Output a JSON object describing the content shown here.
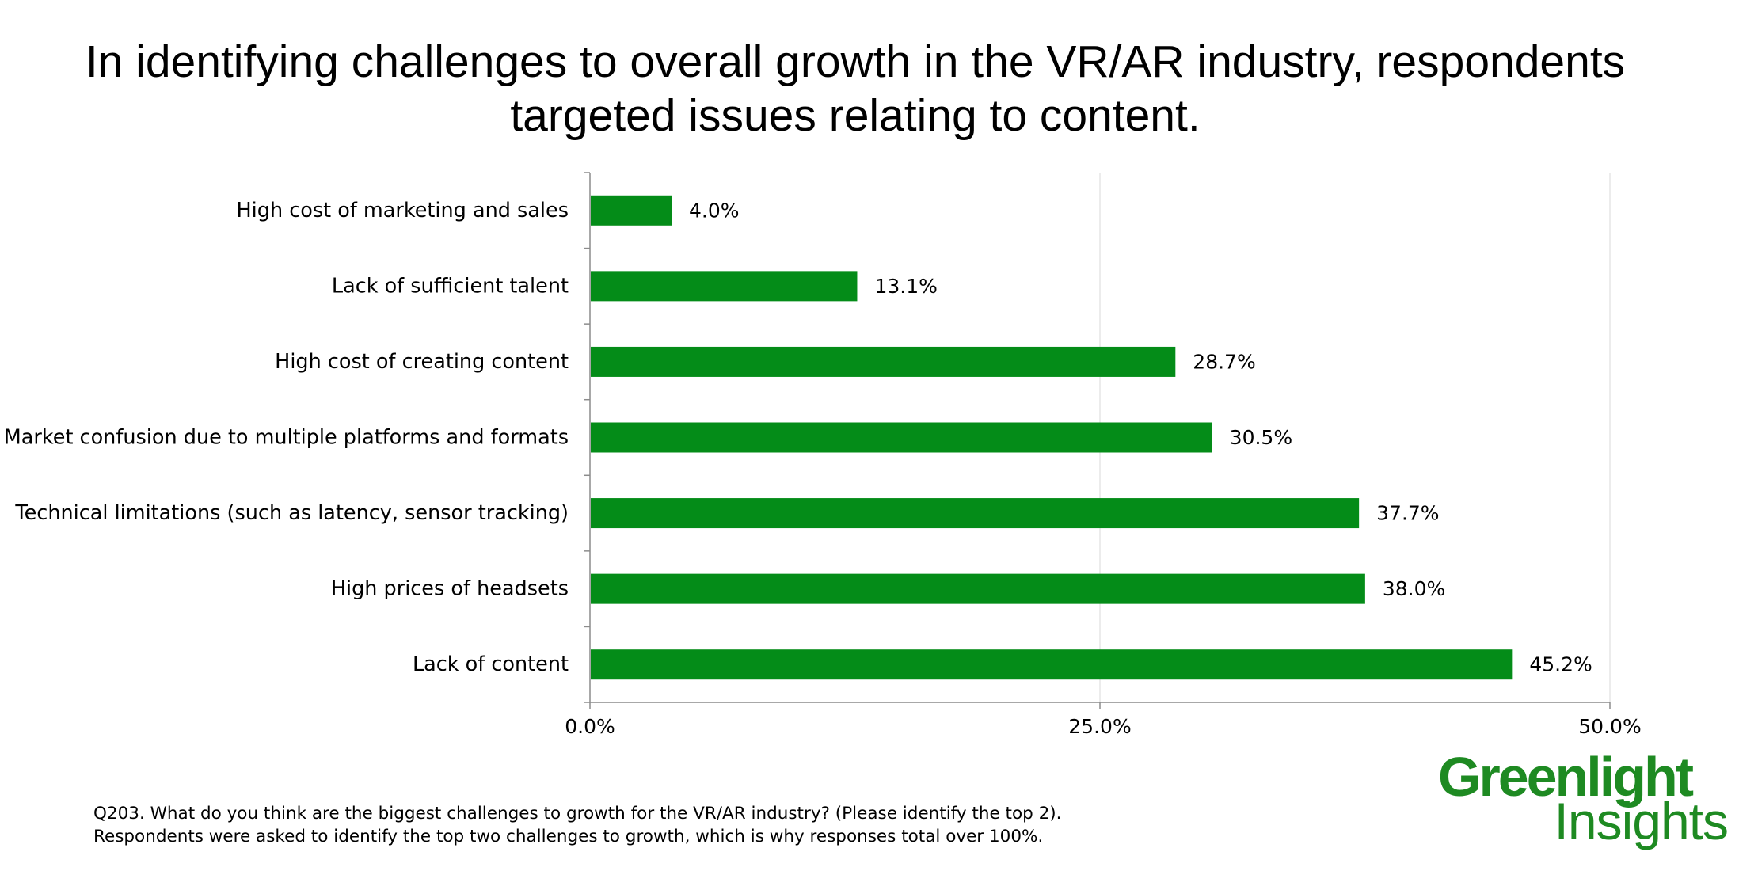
{
  "slide": {
    "title_line_1": "In identifying challenges to overall growth in the VR/AR industry, respondents",
    "title_line_2": "targeted issues relating to content.",
    "footnote_line_1": "Q203. What do you think are the biggest challenges to growth for the VR/AR industry? (Please identify the top 2).",
    "footnote_line_2": "Respondents were asked to identify the top two challenges to growth, which is why responses total over 100%."
  },
  "logo": {
    "word_1": "Greenlight",
    "word_2": "Insights",
    "color": "#1e8a22"
  },
  "chart_data": {
    "type": "bar",
    "orientation": "horizontal",
    "title": "",
    "xlabel": "",
    "ylabel": "",
    "categories": [
      "High cost of marketing and sales",
      "Lack of sufficient talent",
      "High cost of creating content",
      "Market confusion due to multiple platforms and formats",
      "Technical limitations (such as latency, sensor tracking)",
      "High prices of headsets",
      "Lack of content"
    ],
    "values": [
      4.0,
      13.1,
      28.7,
      30.5,
      37.7,
      38.0,
      45.2
    ],
    "value_labels": [
      "4.0%",
      "13.1%",
      "28.7%",
      "30.5%",
      "37.7%",
      "38.0%",
      "45.2%"
    ],
    "xlim": [
      0,
      50
    ],
    "ticks": [
      0,
      25,
      50
    ],
    "tick_labels": [
      "0.0%",
      "25.0%",
      "50.0%"
    ],
    "grid": "vertical",
    "legend": "none",
    "bar_color": "#048c18",
    "grid_color": "#e6e6e6",
    "axis_color": "#8c8c8c"
  }
}
